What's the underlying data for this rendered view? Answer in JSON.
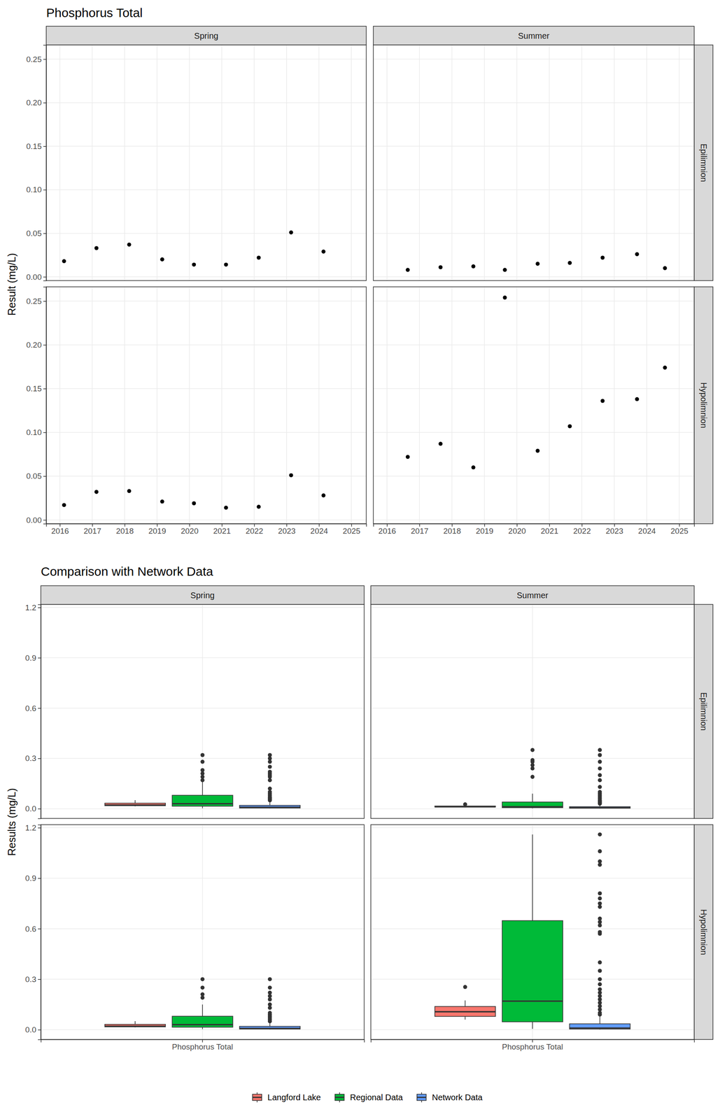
{
  "chart_data": [
    {
      "type": "scatter",
      "title": "Phosphorus Total",
      "y_label": "Result (mg/L)",
      "color": "#000000",
      "grid": true,
      "columns": [
        "Spring",
        "Summer"
      ],
      "rows": [
        "Epilimnion",
        "Hypolimnion"
      ],
      "xlim": [
        2015.58,
        2025.46
      ],
      "xticks": [
        2016,
        2017,
        2018,
        2019,
        2020,
        2021,
        2022,
        2023,
        2024,
        2025
      ],
      "ylim": [
        -0.0043,
        0.2663
      ],
      "yticks": [
        {
          "value": 0,
          "label": "0.00"
        },
        0.05,
        {
          "value": 0.1,
          "label": "0.10"
        },
        0.15,
        {
          "value": 0.2,
          "label": "0.20"
        },
        0.25
      ],
      "panels": [
        [
          {
            "x": [
              2016.13,
              2017.13,
              2018.14,
              2019.16,
              2020.14,
              2021.13,
              2022.14,
              2023.14,
              2024.14
            ],
            "values": [
              0.018,
              0.033,
              0.037,
              0.02,
              0.014,
              0.014,
              0.022,
              0.051,
              0.029
            ]
          },
          {
            "x": [
              2016.64,
              2017.65,
              2018.66,
              2019.63,
              2020.64,
              2021.63,
              2022.64,
              2023.7,
              2024.56
            ],
            "values": [
              0.008,
              0.011,
              0.012,
              0.008,
              0.015,
              0.016,
              0.022,
              0.026,
              0.01
            ]
          }
        ],
        [
          {
            "x": [
              2016.13,
              2017.13,
              2018.14,
              2019.16,
              2020.14,
              2021.13,
              2022.14,
              2023.14,
              2024.14
            ],
            "values": [
              0.017,
              0.032,
              0.033,
              0.021,
              0.019,
              0.014,
              0.015,
              0.051,
              0.028
            ]
          },
          {
            "x": [
              2016.64,
              2017.65,
              2018.66,
              2019.63,
              2020.64,
              2021.63,
              2022.64,
              2023.7,
              2024.56
            ],
            "values": [
              0.072,
              0.087,
              0.06,
              0.254,
              0.079,
              0.107,
              0.136,
              0.138,
              0.174
            ]
          }
        ]
      ]
    },
    {
      "type": "box",
      "title": "Comparison with Network Data",
      "y_label": "Results (mg/L)",
      "grid": true,
      "legend": "bottom",
      "columns": [
        "Spring",
        "Summer"
      ],
      "rows": [
        "Epilimnion",
        "Hypolimnion"
      ],
      "categories": [
        "Phosphorus Total"
      ],
      "ylim": [
        -0.058,
        1.218
      ],
      "yticks": [
        {
          "value": 0,
          "label": "0.0"
        },
        0.3,
        0.6,
        0.9,
        1.2
      ],
      "series": [
        {
          "name": "Langford Lake",
          "color": "#F8766D"
        },
        {
          "name": "Regional Data",
          "color": "#00BA38"
        },
        {
          "name": "Network Data",
          "color": "#619CFF"
        }
      ],
      "panels": [
        [
          [
            {
              "low": 0.014,
              "q1": 0.018,
              "median": 0.022,
              "q3": 0.033,
              "high": 0.051,
              "outliers": []
            },
            {
              "low": 0.003,
              "q1": 0.015,
              "median": 0.03,
              "q3": 0.08,
              "high": 0.16,
              "outliers": [
                0.17,
                0.19,
                0.21,
                0.23,
                0.28,
                0.32
              ]
            },
            {
              "low": 0.002,
              "q1": 0.004,
              "median": 0.009,
              "q3": 0.02,
              "high": 0.045,
              "outliers": [
                0.05,
                0.055,
                0.06,
                0.065,
                0.07,
                0.08,
                0.09,
                0.1,
                0.12,
                0.17,
                0.19,
                0.2,
                0.21,
                0.22,
                0.25,
                0.28,
                0.3,
                0.32
              ]
            }
          ],
          [
            {
              "low": 0.008,
              "q1": 0.01,
              "median": 0.012,
              "q3": 0.016,
              "high": 0.022,
              "outliers": [
                0.026
              ]
            },
            {
              "low": 0.002,
              "q1": 0.006,
              "median": 0.012,
              "q3": 0.04,
              "high": 0.09,
              "outliers": [
                0.19,
                0.24,
                0.26,
                0.28,
                0.29,
                0.35
              ]
            },
            {
              "low": 0.001,
              "q1": 0.003,
              "median": 0.006,
              "q3": 0.012,
              "high": 0.025,
              "outliers": [
                0.03,
                0.035,
                0.04,
                0.045,
                0.05,
                0.06,
                0.07,
                0.08,
                0.09,
                0.1,
                0.13,
                0.17,
                0.2,
                0.24,
                0.28,
                0.32,
                0.35
              ]
            }
          ]
        ],
        [
          [
            {
              "low": 0.014,
              "q1": 0.017,
              "median": 0.021,
              "q3": 0.032,
              "high": 0.051,
              "outliers": []
            },
            {
              "low": 0.003,
              "q1": 0.015,
              "median": 0.03,
              "q3": 0.08,
              "high": 0.15,
              "outliers": [
                0.19,
                0.21,
                0.25,
                0.3
              ]
            },
            {
              "low": 0.002,
              "q1": 0.004,
              "median": 0.008,
              "q3": 0.02,
              "high": 0.045,
              "outliers": [
                0.05,
                0.06,
                0.07,
                0.08,
                0.09,
                0.1,
                0.13,
                0.15,
                0.18,
                0.2,
                0.22,
                0.25,
                0.3
              ]
            }
          ],
          [
            {
              "low": 0.06,
              "q1": 0.079,
              "median": 0.107,
              "q3": 0.138,
              "high": 0.174,
              "outliers": [
                0.254
              ]
            },
            {
              "low": 0.005,
              "q1": 0.047,
              "median": 0.17,
              "q3": 0.648,
              "high": 1.16,
              "outliers": []
            },
            {
              "low": 0.001,
              "q1": 0.004,
              "median": 0.01,
              "q3": 0.035,
              "high": 0.08,
              "outliers": [
                0.09,
                0.1,
                0.12,
                0.14,
                0.16,
                0.18,
                0.2,
                0.22,
                0.24,
                0.27,
                0.3,
                0.35,
                0.4,
                0.57,
                0.58,
                0.62,
                0.64,
                0.66,
                0.73,
                0.75,
                0.78,
                0.81,
                0.98,
                1,
                1.06,
                1.16
              ]
            }
          ]
        ]
      ]
    }
  ]
}
